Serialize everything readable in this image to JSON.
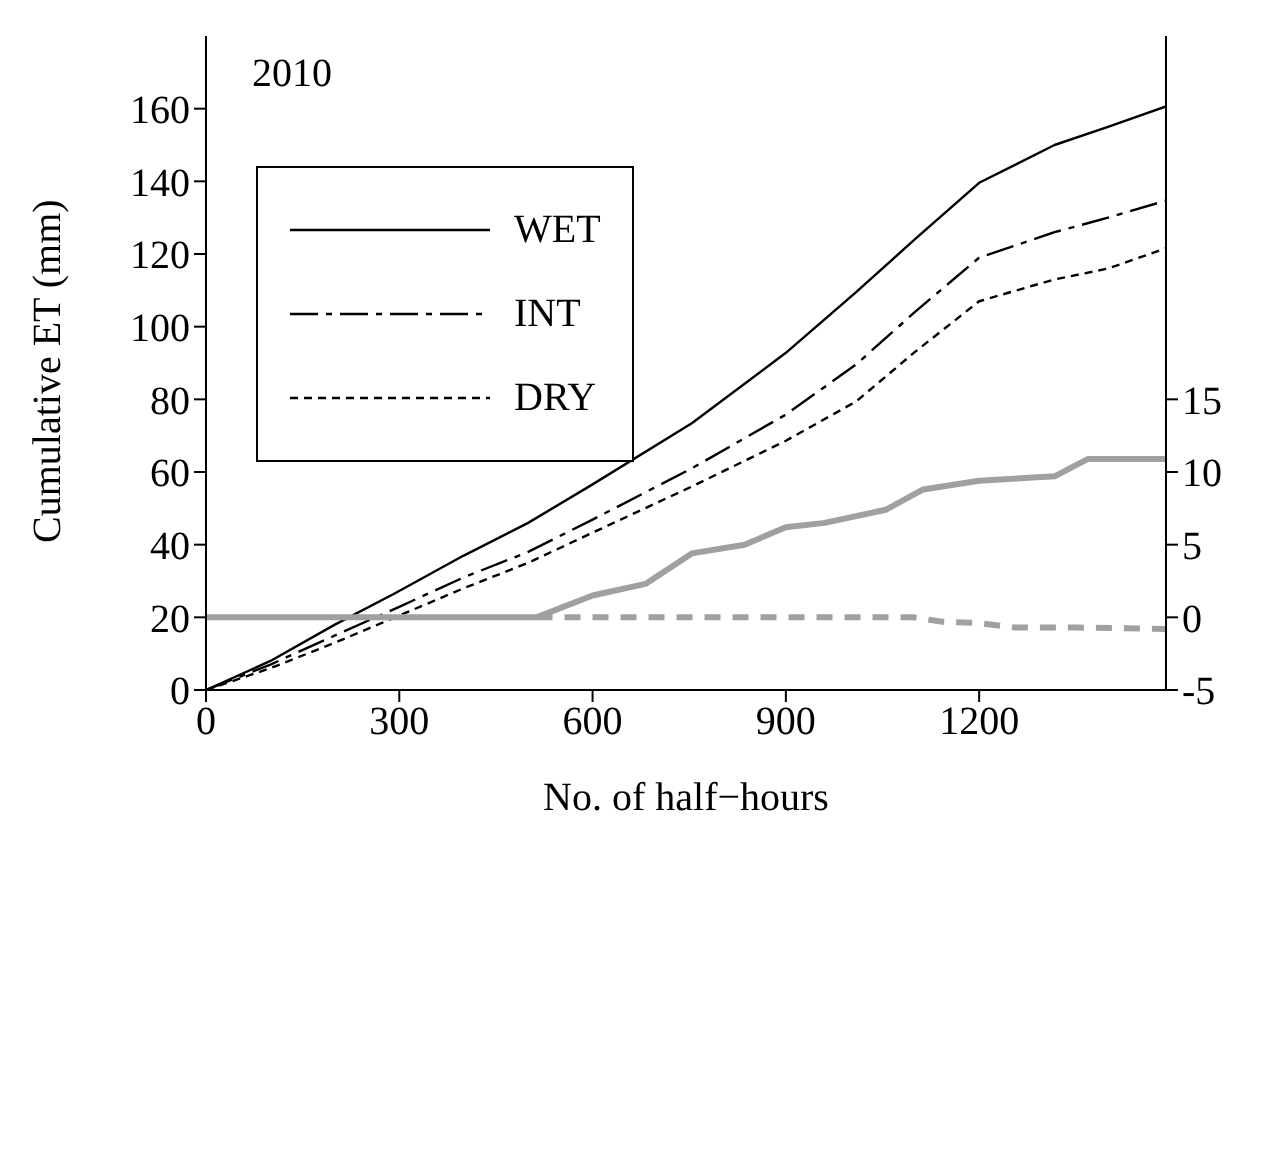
{
  "chart_data": {
    "type": "line",
    "xlabel": "No. of half−hours",
    "ylabel": "Cumulative ET (mm)",
    "annotations": [
      "2010"
    ],
    "xlim": [
      0,
      1490
    ],
    "xticks": [
      0,
      300,
      600,
      900,
      1200
    ],
    "ylim": [
      0,
      180
    ],
    "yticks": [
      0,
      20,
      40,
      60,
      80,
      100,
      120,
      140,
      160
    ],
    "y2lim": [
      -5,
      40
    ],
    "y2ticks": [
      -5,
      0,
      5,
      10,
      15
    ],
    "legend": "top left",
    "marker": "none",
    "series": [
      {
        "name": "WET",
        "color": "#000000",
        "line_style": "solid",
        "x": [
          0,
          100,
          200,
          292,
          400,
          500,
          600,
          754,
          900,
          1009,
          1100,
          1200,
          1317,
          1400,
          1490
        ],
        "values": [
          0,
          8,
          18,
          26.5,
          37,
          46,
          56.6,
          73.4,
          92.8,
          109.5,
          124,
          139.6,
          150,
          155,
          160.6
        ]
      },
      {
        "name": "INT",
        "color": "#000000",
        "line_style": "dashed",
        "x": [
          0,
          100,
          200,
          300,
          400,
          500,
          600,
          754,
          900,
          1009,
          1100,
          1200,
          1317,
          1400,
          1490
        ],
        "values": [
          0,
          7,
          15,
          22.9,
          31,
          38,
          46.9,
          61,
          75.8,
          89.6,
          104,
          119,
          126,
          130,
          134.7
        ]
      },
      {
        "name": "DRY",
        "color": "#000000",
        "line_style": "dotted",
        "x": [
          0,
          100,
          200,
          300,
          400,
          500,
          600,
          754,
          900,
          1009,
          1100,
          1200,
          1317,
          1400,
          1490
        ],
        "values": [
          0,
          6,
          13,
          20.5,
          28,
          35,
          43.3,
          56,
          68.6,
          79.4,
          93,
          107,
          113,
          116,
          121.6
        ]
      },
      {
        "color": "#a0a0a0",
        "axis": "y2",
        "line_style": "solid",
        "x": [
          0,
          513,
          600,
          682,
          754,
          836,
          900,
          960,
          1055,
          1113,
          1200,
          1317,
          1369,
          1490
        ],
        "values": [
          0,
          0,
          1.5,
          2.3,
          4.4,
          5,
          6.2,
          6.5,
          7.4,
          8.8,
          9.4,
          9.7,
          10.9,
          10.9
        ]
      },
      {
        "color": "#a0a0a0",
        "axis": "y2",
        "line_style": "dashed",
        "x": [
          513,
          800,
          1097,
          1143,
          1200,
          1256,
          1350,
          1490
        ],
        "values": [
          0,
          0,
          0,
          -0.3,
          -0.4,
          -0.7,
          -0.7,
          -0.8
        ]
      }
    ]
  }
}
